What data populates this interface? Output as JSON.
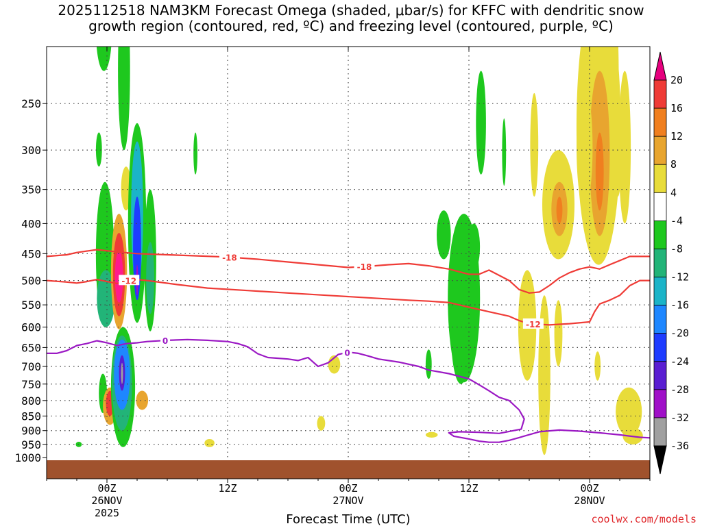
{
  "title_line1": "2025112518 NAM3KM Forecast Omega (shaded, μbar/s) for KFFC with dendritic snow",
  "title_line2": "growth region (contoured, red, ºC) and freezing level (contoured, purple, ºC)",
  "credit": "coolwx.com/models",
  "colors": {
    "ground": "#a0522d",
    "dgz": "#ef3b36",
    "freezing": "#9b19c4"
  },
  "chart_data": {
    "type": "heatmap",
    "xlabel": "Forecast Time (UTC)",
    "x_ticks": [
      {
        "hour": 6,
        "label": "00Z",
        "sub": "26NOV",
        "sub2": "2025"
      },
      {
        "hour": 18,
        "label": "12Z",
        "sub": "",
        "sub2": ""
      },
      {
        "hour": 30,
        "label": "00Z",
        "sub": "27NOV",
        "sub2": ""
      },
      {
        "hour": 42,
        "label": "12Z",
        "sub": "",
        "sub2": ""
      },
      {
        "hour": 54,
        "label": "00Z",
        "sub": "28NOV",
        "sub2": ""
      }
    ],
    "xlim": [
      0,
      60
    ],
    "y_ticks": [
      250,
      300,
      350,
      400,
      450,
      500,
      550,
      600,
      650,
      700,
      750,
      800,
      850,
      900,
      950,
      1000
    ],
    "ylim": [
      200,
      1000
    ],
    "colorbar": {
      "labels": [
        20,
        16,
        12,
        8,
        4,
        -4,
        -8,
        -12,
        -16,
        -20,
        -24,
        -28,
        -32,
        -36
      ],
      "colors": [
        "#ff1a8c",
        "#ef3b36",
        "#f07f1f",
        "#e8a52f",
        "#e8dc3a",
        "#ffffff",
        "#1ec81e",
        "#22b478",
        "#1bb4c8",
        "#1e87ff",
        "#1e3cff",
        "#5a1ed2",
        "#a010c8",
        "#a0a0a0"
      ]
    },
    "omega_regions": [
      {
        "t": 5.6,
        "p": 780,
        "rt": 0.4,
        "rp": 60,
        "value": -8
      },
      {
        "t": 5.7,
        "p": 150,
        "rt": 0.8,
        "rp": 70,
        "value": -8
      },
      {
        "t": 5.8,
        "p": 470,
        "rt": 0.9,
        "rp": 130,
        "value": -8
      },
      {
        "t": 5.9,
        "p": 540,
        "rt": 0.9,
        "rp": 60,
        "value": -12
      },
      {
        "t": 5.2,
        "p": 300,
        "rt": 0.3,
        "rp": 20,
        "value": -8
      },
      {
        "t": 5.4,
        "p": 245,
        "rt": 0.15,
        "rp": 25,
        "value": -4
      },
      {
        "t": 6.3,
        "p": 820,
        "rt": 0.7,
        "rp": 60,
        "value": 8
      },
      {
        "t": 6.3,
        "p": 810,
        "rt": 0.4,
        "rp": 40,
        "value": 16
      },
      {
        "t": 7.6,
        "p": 780,
        "rt": 1.2,
        "rp": 180,
        "value": -8
      },
      {
        "t": 7.5,
        "p": 760,
        "rt": 1.0,
        "rp": 140,
        "value": -12
      },
      {
        "t": 7.5,
        "p": 730,
        "rt": 0.8,
        "rp": 100,
        "value": -20
      },
      {
        "t": 7.5,
        "p": 720,
        "rt": 0.3,
        "rp": 50,
        "value": -28
      },
      {
        "t": 7.5,
        "p": 720,
        "rt": 0.1,
        "rp": 30,
        "value": -36
      },
      {
        "t": 7.2,
        "p": 495,
        "rt": 0.8,
        "rp": 110,
        "value": 8
      },
      {
        "t": 7.2,
        "p": 495,
        "rt": 0.6,
        "rp": 80,
        "value": 16
      },
      {
        "t": 7.2,
        "p": 495,
        "rt": 0.4,
        "rp": 50,
        "value": 20
      },
      {
        "t": 7.7,
        "p": 200,
        "rt": 0.6,
        "rp": 100,
        "value": -8
      },
      {
        "t": 7.9,
        "p": 350,
        "rt": 0.5,
        "rp": 30,
        "value": 4
      },
      {
        "t": 9.0,
        "p": 430,
        "rt": 0.9,
        "rp": 160,
        "value": -8
      },
      {
        "t": 9.0,
        "p": 400,
        "rt": 0.6,
        "rp": 110,
        "value": -16
      },
      {
        "t": 9.0,
        "p": 450,
        "rt": 0.4,
        "rp": 90,
        "value": -24
      },
      {
        "t": 9.0,
        "p": 500,
        "rt": 0.1,
        "rp": 30,
        "value": -32
      },
      {
        "t": 9.5,
        "p": 800,
        "rt": 0.6,
        "rp": 30,
        "value": 8
      },
      {
        "t": 10.3,
        "p": 480,
        "rt": 0.6,
        "rp": 130,
        "value": -8
      },
      {
        "t": 10.3,
        "p": 500,
        "rt": 0.4,
        "rp": 70,
        "value": -12
      },
      {
        "t": 14.8,
        "p": 305,
        "rt": 0.2,
        "rp": 25,
        "value": -8
      },
      {
        "t": 3.2,
        "p": 950,
        "rt": 0.3,
        "rp": 10,
        "value": -8
      },
      {
        "t": 16.2,
        "p": 945,
        "rt": 0.5,
        "rp": 15,
        "value": 4
      },
      {
        "t": 27.3,
        "p": 875,
        "rt": 0.4,
        "rp": 25,
        "value": 4
      },
      {
        "t": 28.6,
        "p": 695,
        "rt": 0.6,
        "rp": 25,
        "value": 4
      },
      {
        "t": 38.3,
        "p": 915,
        "rt": 0.6,
        "rp": 10,
        "value": 4
      },
      {
        "t": 39.5,
        "p": 420,
        "rt": 0.7,
        "rp": 40,
        "value": -8
      },
      {
        "t": 41.2,
        "p": 620,
        "rt": 1.0,
        "rp": 130,
        "value": -8
      },
      {
        "t": 41.5,
        "p": 565,
        "rt": 1.6,
        "rp": 180,
        "value": -8
      },
      {
        "t": 42.5,
        "p": 440,
        "rt": 0.6,
        "rp": 40,
        "value": -8
      },
      {
        "t": 43.2,
        "p": 275,
        "rt": 0.5,
        "rp": 55,
        "value": -8
      },
      {
        "t": 38.0,
        "p": 695,
        "rt": 0.3,
        "rp": 40,
        "value": -8
      },
      {
        "t": 45.5,
        "p": 305,
        "rt": 0.2,
        "rp": 40,
        "value": -8
      },
      {
        "t": 48.5,
        "p": 300,
        "rt": 0.4,
        "rp": 60,
        "value": 4
      },
      {
        "t": 47.8,
        "p": 610,
        "rt": 0.9,
        "rp": 130,
        "value": 4
      },
      {
        "t": 49.5,
        "p": 760,
        "rt": 0.6,
        "rp": 230,
        "value": 4
      },
      {
        "t": 50.9,
        "p": 620,
        "rt": 0.4,
        "rp": 80,
        "value": 4
      },
      {
        "t": 50.9,
        "p": 380,
        "rt": 1.6,
        "rp": 80,
        "value": 4
      },
      {
        "t": 51.0,
        "p": 380,
        "rt": 0.8,
        "rp": 40,
        "value": 8
      },
      {
        "t": 51.0,
        "p": 380,
        "rt": 0.3,
        "rp": 20,
        "value": 12
      },
      {
        "t": 54.9,
        "p": 290,
        "rt": 2.2,
        "rp": 180,
        "value": 4
      },
      {
        "t": 55.0,
        "p": 320,
        "rt": 1.0,
        "rp": 100,
        "value": 8
      },
      {
        "t": 55.0,
        "p": 330,
        "rt": 0.4,
        "rp": 50,
        "value": 12
      },
      {
        "t": 53.5,
        "p": 305,
        "rt": 0.8,
        "rp": 70,
        "value": 4
      },
      {
        "t": 56.4,
        "p": 230,
        "rt": 0.5,
        "rp": 60,
        "value": 4
      },
      {
        "t": 56.8,
        "p": 330,
        "rt": 0.3,
        "rp": 30,
        "value": 4
      },
      {
        "t": 57.5,
        "p": 310,
        "rt": 0.6,
        "rp": 90,
        "value": 4
      },
      {
        "t": 57.9,
        "p": 840,
        "rt": 1.3,
        "rp": 80,
        "value": 4
      },
      {
        "t": 58.3,
        "p": 920,
        "rt": 1.0,
        "rp": 30,
        "value": 4
      },
      {
        "t": 54.8,
        "p": 700,
        "rt": 0.3,
        "rp": 40,
        "value": 4
      }
    ],
    "contours": [
      {
        "name": "-18",
        "kind": "dgz",
        "label_at": [
          18.2,
          31.6
        ],
        "points": [
          [
            0,
            455
          ],
          [
            2,
            452
          ],
          [
            3,
            448
          ],
          [
            5,
            443
          ],
          [
            7,
            447
          ],
          [
            9,
            450
          ],
          [
            12,
            452
          ],
          [
            15,
            454
          ],
          [
            18,
            456
          ],
          [
            21,
            460
          ],
          [
            24,
            465
          ],
          [
            27,
            470
          ],
          [
            30,
            475
          ],
          [
            32,
            473
          ],
          [
            34,
            470
          ],
          [
            36,
            468
          ],
          [
            38,
            472
          ],
          [
            40,
            478
          ],
          [
            42,
            488
          ],
          [
            43,
            488
          ],
          [
            44,
            480
          ],
          [
            46,
            500
          ],
          [
            47,
            518
          ],
          [
            48,
            525
          ],
          [
            49,
            523
          ],
          [
            50,
            510
          ],
          [
            51,
            495
          ],
          [
            52,
            485
          ],
          [
            53,
            478
          ],
          [
            54,
            474
          ],
          [
            55,
            478
          ],
          [
            56,
            470
          ],
          [
            58,
            455
          ],
          [
            60,
            455
          ]
        ]
      },
      {
        "name": "-12",
        "kind": "dgz",
        "label_at": [
          8.2,
          48.4
        ],
        "points": [
          [
            0,
            500
          ],
          [
            2,
            503
          ],
          [
            3,
            505
          ],
          [
            4,
            502
          ],
          [
            5,
            498
          ],
          [
            6,
            502
          ],
          [
            7,
            506
          ],
          [
            8,
            500
          ],
          [
            9,
            498
          ],
          [
            10,
            500
          ],
          [
            13,
            508
          ],
          [
            16,
            515
          ],
          [
            20,
            520
          ],
          [
            24,
            525
          ],
          [
            28,
            530
          ],
          [
            32,
            535
          ],
          [
            36,
            540
          ],
          [
            38,
            542
          ],
          [
            40,
            545
          ],
          [
            41,
            550
          ],
          [
            42,
            555
          ],
          [
            44,
            565
          ],
          [
            46,
            575
          ],
          [
            47,
            585
          ],
          [
            48,
            592
          ],
          [
            50,
            595
          ],
          [
            52,
            592
          ],
          [
            54,
            588
          ],
          [
            54.5,
            565
          ],
          [
            55,
            548
          ],
          [
            56,
            540
          ],
          [
            57,
            530
          ],
          [
            58,
            510
          ],
          [
            59,
            500
          ],
          [
            60,
            500
          ]
        ]
      },
      {
        "name": "0",
        "kind": "freeze",
        "label_at": [
          11.8,
          29.9
        ],
        "points": [
          [
            0,
            665
          ],
          [
            1,
            665
          ],
          [
            2,
            658
          ],
          [
            3,
            645
          ],
          [
            4,
            640
          ],
          [
            5,
            633
          ],
          [
            6,
            638
          ],
          [
            7,
            645
          ],
          [
            8,
            640
          ],
          [
            9,
            638
          ],
          [
            10,
            635
          ],
          [
            12,
            632
          ],
          [
            14,
            630
          ],
          [
            16,
            632
          ],
          [
            18,
            635
          ],
          [
            19,
            640
          ],
          [
            20,
            648
          ],
          [
            21,
            666
          ],
          [
            22,
            676
          ],
          [
            24,
            680
          ],
          [
            25,
            684
          ],
          [
            26,
            676
          ],
          [
            26.5,
            688
          ],
          [
            27,
            700
          ],
          [
            28,
            690
          ],
          [
            29,
            668
          ],
          [
            30,
            662
          ],
          [
            31,
            665
          ],
          [
            32,
            672
          ],
          [
            33,
            680
          ],
          [
            35,
            688
          ],
          [
            37,
            700
          ],
          [
            38,
            710
          ],
          [
            40,
            720
          ],
          [
            42,
            735
          ],
          [
            43,
            752
          ],
          [
            44,
            770
          ],
          [
            45,
            790
          ],
          [
            46,
            800
          ],
          [
            47,
            830
          ],
          [
            47.5,
            860
          ],
          [
            47.2,
            895
          ],
          [
            45,
            910
          ],
          [
            43,
            906
          ],
          [
            41,
            904
          ],
          [
            40,
            908
          ],
          [
            40.5,
            920
          ],
          [
            42,
            930
          ],
          [
            43,
            938
          ],
          [
            44,
            942
          ],
          [
            45,
            942
          ],
          [
            46,
            935
          ],
          [
            47,
            925
          ],
          [
            49,
            904
          ],
          [
            51,
            898
          ],
          [
            53,
            902
          ],
          [
            55,
            908
          ],
          [
            57,
            915
          ],
          [
            59,
            924
          ],
          [
            60,
            926
          ]
        ]
      }
    ]
  }
}
